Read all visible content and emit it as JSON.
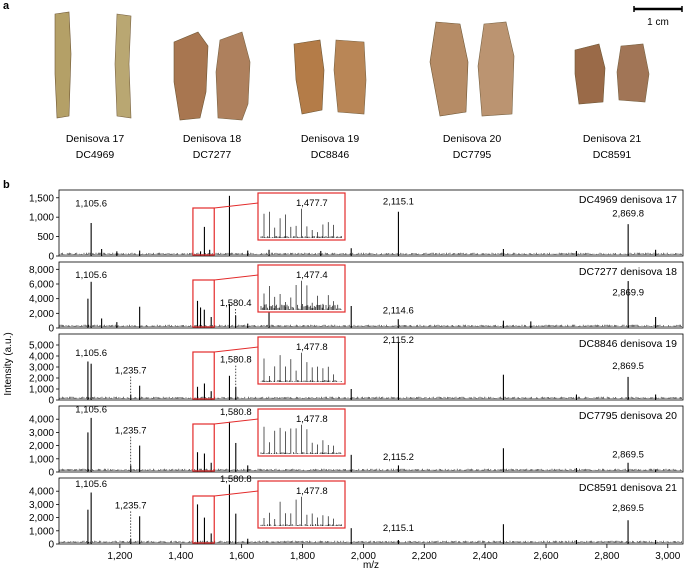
{
  "panel_a": {
    "letter": "a",
    "scale_bar_label": "1 cm",
    "specimens": [
      {
        "name": "Denisova 17",
        "code": "DC4969",
        "color": "#b4a067"
      },
      {
        "name": "Denisova 18",
        "code": "DC7277",
        "color": "#a87650"
      },
      {
        "name": "Denisova 19",
        "code": "DC8846",
        "color": "#b47c48"
      },
      {
        "name": "Denisova 20",
        "code": "DC7795",
        "color": "#b68c66"
      },
      {
        "name": "Denisova 21",
        "code": "DC8591",
        "color": "#9a6a48"
      }
    ]
  },
  "panel_b": {
    "letter": "b"
  },
  "chart_data": {
    "type": "line",
    "xlabel": "m/z",
    "ylabel": "Intensity (a.u.)",
    "xlim": [
      1000,
      3050
    ],
    "xticks": [
      1200,
      1400,
      1600,
      1800,
      2000,
      2200,
      2400,
      2600,
      2800,
      3000
    ],
    "xtick_labels": [
      "1,200",
      "1,400",
      "1,600",
      "1,800",
      "2,000",
      "2,200",
      "2,400",
      "2,600",
      "2,800",
      "3,000"
    ],
    "inset_range": [
      1440,
      1510
    ],
    "accent_color": "#e32b2b",
    "spectra": [
      {
        "title": "DC4969 denisova 17",
        "ylim": [
          0,
          1700
        ],
        "yticks": [
          0,
          500,
          1000,
          1500
        ],
        "ytick_labels": [
          "0",
          "500",
          "1,000",
          "1,500"
        ],
        "peaks": [
          [
            1105.6,
            850
          ],
          [
            1140,
            180
          ],
          [
            1190,
            120
          ],
          [
            1265,
            140
          ],
          [
            1477.7,
            750
          ],
          [
            1465,
            120
          ],
          [
            1495,
            160
          ],
          [
            1560,
            1550
          ],
          [
            1620,
            140
          ],
          [
            1690,
            160
          ],
          [
            1860,
            130
          ],
          [
            1960,
            200
          ],
          [
            2115.1,
            1140
          ],
          [
            2460,
            180
          ],
          [
            2700,
            130
          ],
          [
            2869.8,
            820
          ],
          [
            2960,
            160
          ]
        ],
        "labels": [
          {
            "text": "1,105.6",
            "x": 1105.6,
            "y": 1280
          },
          {
            "text": "2,115.1",
            "x": 2115.1,
            "y": 1330
          },
          {
            "text": "2,869.8",
            "x": 2869.8,
            "y": 1020
          }
        ],
        "inset_label": "1,477.7"
      },
      {
        "title": "DC7277 denisova 18",
        "ylim": [
          0,
          9000
        ],
        "yticks": [
          0,
          2000,
          4000,
          6000,
          8000
        ],
        "ytick_labels": [
          "0",
          "2,000",
          "4,000",
          "6,000",
          "8,000"
        ],
        "peaks": [
          [
            1105.6,
            6300
          ],
          [
            1095,
            4000
          ],
          [
            1140,
            1300
          ],
          [
            1190,
            800
          ],
          [
            1265,
            2900
          ],
          [
            1455,
            3700
          ],
          [
            1465,
            2800
          ],
          [
            1477.4,
            2500
          ],
          [
            1500,
            1500
          ],
          [
            1560,
            3300
          ],
          [
            1580.4,
            1700
          ],
          [
            1620,
            600
          ],
          [
            1690,
            5000
          ],
          [
            1960,
            3000
          ],
          [
            2114.6,
            1200
          ],
          [
            2460,
            1000
          ],
          [
            2550,
            900
          ],
          [
            2869.9,
            6400
          ],
          [
            2960,
            1500
          ]
        ],
        "labels": [
          {
            "text": "1,105.6",
            "x": 1105.6,
            "y": 6800
          },
          {
            "text": "1,580.4",
            "x": 1580.4,
            "y": 3000
          },
          {
            "text": "2,114.6",
            "x": 2114.6,
            "y": 2000
          },
          {
            "text": "2,869.9",
            "x": 2869.9,
            "y": 4400
          }
        ],
        "dashed": [
          1580.4
        ],
        "inset_label": "1,477.4"
      },
      {
        "title": "DC8846 denisova 19",
        "ylim": [
          0,
          6000
        ],
        "yticks": [
          0,
          1000,
          2000,
          3000,
          4000,
          5000
        ],
        "ytick_labels": [
          "0",
          "1,000",
          "2,000",
          "3,000",
          "4,000",
          "5,000"
        ],
        "peaks": [
          [
            1105.6,
            3300
          ],
          [
            1095,
            3500
          ],
          [
            1235.7,
            500
          ],
          [
            1265,
            1300
          ],
          [
            1455,
            1200
          ],
          [
            1477.8,
            1500
          ],
          [
            1500,
            800
          ],
          [
            1560,
            2200
          ],
          [
            1580.8,
            1200
          ],
          [
            1960,
            1000
          ],
          [
            2115.2,
            5200
          ],
          [
            2460,
            2300
          ],
          [
            2700,
            500
          ],
          [
            2869.5,
            2100
          ],
          [
            2960,
            500
          ]
        ],
        "labels": [
          {
            "text": "1,105.6",
            "x": 1105.6,
            "y": 4000
          },
          {
            "text": "1,235.7",
            "x": 1235.7,
            "y": 2400
          },
          {
            "text": "1,580.8",
            "x": 1580.8,
            "y": 3400
          },
          {
            "text": "2,115.2",
            "x": 2115.2,
            "y": 5200
          },
          {
            "text": "2,869.5",
            "x": 2869.5,
            "y": 2800
          }
        ],
        "dashed": [
          1235.7,
          1580.8
        ],
        "inset_label": "1,477.8"
      },
      {
        "title": "DC7795 denisova 20",
        "ylim": [
          0,
          5000
        ],
        "yticks": [
          0,
          1000,
          2000,
          3000,
          4000
        ],
        "ytick_labels": [
          "0",
          "1,000",
          "2,000",
          "3,000",
          "4,000"
        ],
        "peaks": [
          [
            1105.6,
            4100
          ],
          [
            1095,
            3000
          ],
          [
            1235.7,
            500
          ],
          [
            1265,
            2000
          ],
          [
            1455,
            1500
          ],
          [
            1477.8,
            1400
          ],
          [
            1500,
            700
          ],
          [
            1560,
            3800
          ],
          [
            1580.8,
            2200
          ],
          [
            1620,
            500
          ],
          [
            1960,
            1300
          ],
          [
            2115.2,
            500
          ],
          [
            2460,
            1800
          ],
          [
            2700,
            300
          ],
          [
            2869.5,
            700
          ],
          [
            2960,
            200
          ]
        ],
        "labels": [
          {
            "text": "1,105.6",
            "x": 1105.6,
            "y": 4500
          },
          {
            "text": "1,235.7",
            "x": 1235.7,
            "y": 2900
          },
          {
            "text": "1,580.8",
            "x": 1580.8,
            "y": 4300
          },
          {
            "text": "2,115.2",
            "x": 2115.2,
            "y": 900
          },
          {
            "text": "2,869.5",
            "x": 2869.5,
            "y": 1100
          }
        ],
        "dashed": [
          1235.7
        ],
        "inset_label": "1,477.8"
      },
      {
        "title": "DC8591 denisova 21",
        "ylim": [
          0,
          5000
        ],
        "yticks": [
          0,
          1000,
          2000,
          3000,
          4000
        ],
        "ytick_labels": [
          "0",
          "1,000",
          "2,000",
          "3,000",
          "4,000"
        ],
        "peaks": [
          [
            1105.6,
            3900
          ],
          [
            1095,
            2600
          ],
          [
            1235.7,
            400
          ],
          [
            1265,
            2100
          ],
          [
            1455,
            3000
          ],
          [
            1477.8,
            2000
          ],
          [
            1500,
            800
          ],
          [
            1560,
            4500
          ],
          [
            1580.8,
            2300
          ],
          [
            1620,
            400
          ],
          [
            1960,
            1200
          ],
          [
            2115.1,
            300
          ],
          [
            2460,
            1500
          ],
          [
            2700,
            300
          ],
          [
            2869.5,
            1800
          ],
          [
            2960,
            300
          ]
        ],
        "labels": [
          {
            "text": "1,105.6",
            "x": 1105.6,
            "y": 4300
          },
          {
            "text": "1,235.7",
            "x": 1235.7,
            "y": 2700
          },
          {
            "text": "1,580.8",
            "x": 1580.8,
            "y": 4700
          },
          {
            "text": "2,115.1",
            "x": 2115.1,
            "y": 1000
          },
          {
            "text": "2,869.5",
            "x": 2869.5,
            "y": 2500
          }
        ],
        "dashed": [
          1235.7
        ],
        "inset_label": "1,477.8"
      }
    ]
  }
}
